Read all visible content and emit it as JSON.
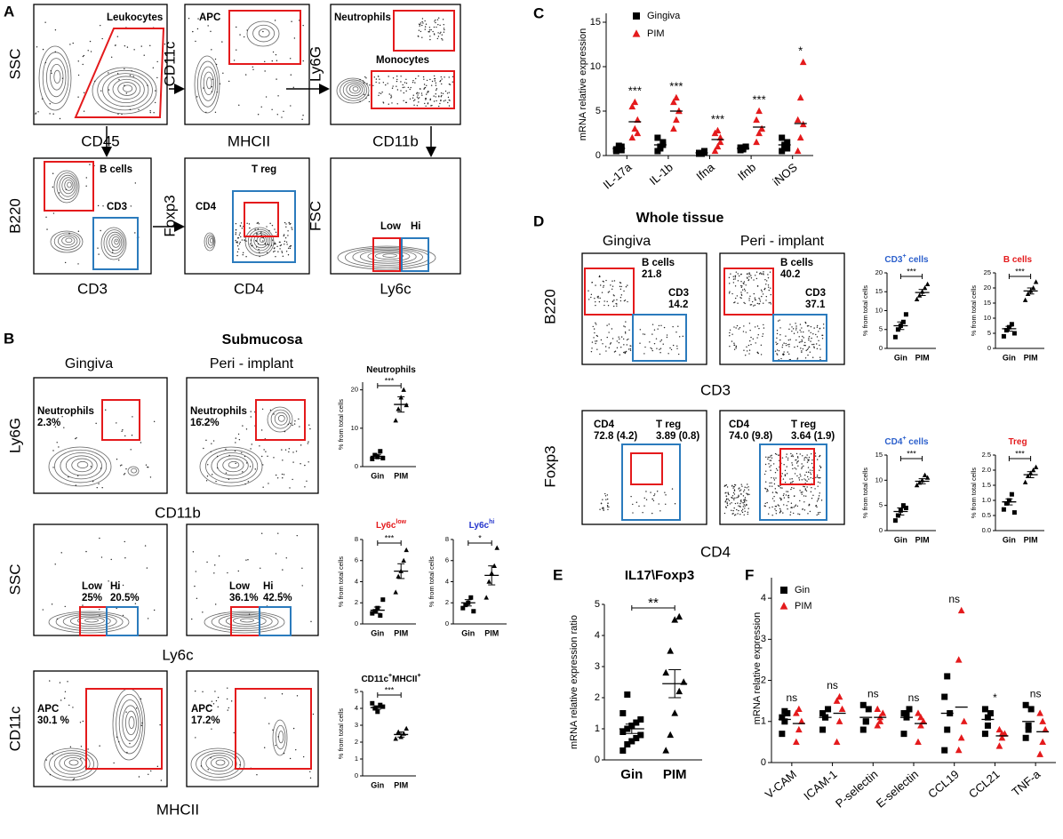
{
  "panel_a": {
    "letter": "A",
    "plots": [
      {
        "x_label": "CD45",
        "y_label": "SSC",
        "gates": [
          {
            "labels": [
              "Leukocytes"
            ],
            "color": "#e41a1c"
          }
        ]
      },
      {
        "x_label": "MHCII",
        "y_label": "CD11c",
        "gates": [
          {
            "labels": [
              "APC"
            ],
            "color": "#e41a1c"
          }
        ]
      },
      {
        "x_label": "CD11b",
        "y_label": "Ly6G",
        "gates": [
          {
            "labels": [
              "Neutrophils"
            ],
            "color": "#e41a1c"
          },
          {
            "labels": [
              "Monocytes"
            ],
            "color": "#e41a1c"
          }
        ]
      },
      {
        "x_label": "CD3",
        "y_label": "B220",
        "gates": [
          {
            "labels": [
              "B cells"
            ],
            "color": "#e41a1c"
          },
          {
            "labels": [
              "CD3"
            ],
            "color": "#2b7bbd"
          }
        ]
      },
      {
        "x_label": "CD4",
        "y_label": "Foxp3",
        "gates": [
          {
            "labels": [
              "T reg"
            ],
            "color": "#e41a1c"
          },
          {
            "labels": [
              "CD4"
            ],
            "color": "#2b7bbd"
          }
        ]
      },
      {
        "x_label": "Ly6c",
        "y_label": "FSC",
        "gates": [
          {
            "labels": [
              "Low"
            ],
            "color": "#e41a1c"
          },
          {
            "labels": [
              "Hi"
            ],
            "color": "#2b7bbd"
          }
        ]
      }
    ]
  },
  "panel_b": {
    "letter": "B",
    "title": "Submucosa",
    "columns": [
      "Gingiva",
      "Peri - implant"
    ],
    "rows": [
      {
        "y_label": "Ly6G",
        "x_label": "CD11b",
        "plots": [
          {
            "gates": [
              {
                "labels": [
                  "Neutrophils",
                  "2.3%"
                ],
                "color": "#e41a1c"
              }
            ]
          },
          {
            "gates": [
              {
                "labels": [
                  "Neutrophils",
                  "16.2%"
                ],
                "color": "#e41a1c"
              }
            ]
          }
        ]
      },
      {
        "y_label": "SSC",
        "x_label": "Ly6c",
        "plots": [
          {
            "gates": [
              {
                "labels": [
                  "Low",
                  "25%"
                ],
                "color": "#e41a1c"
              },
              {
                "labels": [
                  "Hi",
                  "20.5%"
                ],
                "color": "#2b7bbd"
              }
            ]
          },
          {
            "gates": [
              {
                "labels": [
                  "Low",
                  "36.1%"
                ],
                "color": "#e41a1c"
              },
              {
                "labels": [
                  "Hi",
                  "42.5%"
                ],
                "color": "#2b7bbd"
              }
            ]
          }
        ]
      },
      {
        "y_label": "CD11c",
        "x_label": "MHCII",
        "plots": [
          {
            "gates": [
              {
                "labels": [
                  "APC",
                  "30.1 %"
                ],
                "color": "#e41a1c"
              }
            ]
          },
          {
            "gates": [
              {
                "labels": [
                  "APC",
                  "17.2%"
                ],
                "color": "#e41a1c"
              }
            ]
          }
        ]
      }
    ]
  },
  "panel_d": {
    "letter": "D",
    "title": "Whole tissue",
    "columns": [
      "Gingiva",
      "Peri - implant"
    ],
    "rows": [
      {
        "y_label": "B220",
        "x_label": "CD3",
        "plots": [
          {
            "gates": [
              {
                "labels": [
                  "B cells",
                  "21.8"
                ],
                "color": "#e41a1c"
              },
              {
                "labels": [
                  "CD3",
                  "14.2"
                ],
                "color": "#2b7bbd"
              }
            ]
          },
          {
            "gates": [
              {
                "labels": [
                  "B cells",
                  "40.2"
                ],
                "color": "#e41a1c"
              },
              {
                "labels": [
                  "CD3",
                  "37.1"
                ],
                "color": "#2b7bbd"
              }
            ]
          }
        ]
      },
      {
        "y_label": "Foxp3",
        "x_label": "CD4",
        "plots": [
          {
            "gates": [
              {
                "labels": [
                  "CD4",
                  "72.8 (4.2)"
                ],
                "color": "#2b7bbd"
              },
              {
                "labels": [
                  "T reg",
                  "3.89 (0.8)"
                ],
                "color": "#e41a1c"
              }
            ]
          },
          {
            "gates": [
              {
                "labels": [
                  "CD4",
                  "74.0 (9.8)"
                ],
                "color": "#2b7bbd"
              },
              {
                "labels": [
                  "T reg",
                  "3.64 (1.9)"
                ],
                "color": "#e41a1c"
              }
            ]
          }
        ]
      }
    ]
  },
  "chart_data": [
    {
      "type": "dot",
      "title_parts": [
        {
          "t": "Neutrophils"
        }
      ],
      "title_color": "#000000",
      "y_label": "% from total cells",
      "categories": [
        "Gin",
        "PIM"
      ],
      "markers": [
        "square",
        "triangle"
      ],
      "color": "#000000",
      "values": [
        [
          2,
          3,
          2.5,
          4,
          2.2
        ],
        [
          12,
          15,
          18,
          20,
          16
        ]
      ],
      "means": [
        2.7,
        16.2
      ],
      "errors": [
        0.5,
        2
      ],
      "ylim": [
        0,
        22
      ],
      "yticks": [
        0,
        10,
        20
      ],
      "significance": "***"
    },
    {
      "type": "dot",
      "title_parts": [
        {
          "t": "Ly6c"
        },
        {
          "s": "low"
        }
      ],
      "title_color": "#e41a1c",
      "y_label": "% from total cells",
      "categories": [
        "Gin",
        "PIM"
      ],
      "markers": [
        "square",
        "triangle"
      ],
      "color": "#000000",
      "values": [
        [
          1,
          1.2,
          1.5,
          0.8,
          2.3
        ],
        [
          3,
          4.5,
          5,
          6,
          7
        ]
      ],
      "means": [
        1.3,
        5
      ],
      "errors": [
        0.3,
        0.7
      ],
      "ylim": [
        0,
        8
      ],
      "yticks": [
        0,
        2,
        4,
        6,
        8
      ],
      "significance": "***"
    },
    {
      "type": "dot",
      "title_parts": [
        {
          "t": "Ly6c"
        },
        {
          "s": "hi"
        }
      ],
      "title_color": "#2233cc",
      "y_label": "% from total cells",
      "categories": [
        "Gin",
        "PIM"
      ],
      "markers": [
        "square",
        "triangle"
      ],
      "color": "#000000",
      "values": [
        [
          1.5,
          1.8,
          2,
          2.5,
          1.2
        ],
        [
          2.5,
          4,
          4.8,
          5.5,
          7.2
        ]
      ],
      "means": [
        2,
        4.6
      ],
      "errors": [
        0.3,
        0.9
      ],
      "ylim": [
        0,
        8
      ],
      "yticks": [
        0,
        2,
        4,
        6,
        8
      ],
      "significance": "*"
    },
    {
      "type": "dot",
      "title_parts": [
        {
          "t": "CD11c"
        },
        {
          "s": "+"
        },
        {
          "t": "MHCII"
        },
        {
          "s": "+"
        }
      ],
      "title_color": "#000000",
      "y_label": "% from total cells",
      "categories": [
        "Gin",
        "PIM"
      ],
      "markers": [
        "square",
        "triangle"
      ],
      "color": "#000000",
      "values": [
        [
          4.3,
          4,
          3.8,
          4.2,
          4.1
        ],
        [
          2.2,
          2.6,
          2.3,
          2.5,
          2.8
        ]
      ],
      "means": [
        4.05,
        2.45
      ],
      "errors": [
        0.1,
        0.15
      ],
      "ylim": [
        0,
        5
      ],
      "yticks": [
        0,
        1,
        2,
        3,
        4,
        5
      ],
      "significance": "***"
    },
    {
      "type": "dot",
      "title_parts": [
        {
          "t": "CD3"
        },
        {
          "s": "+"
        },
        {
          "t": " cells"
        }
      ],
      "title_color": "#2b5fcc",
      "y_label": "% from total cells",
      "categories": [
        "Gin",
        "PIM"
      ],
      "markers": [
        "square",
        "triangle"
      ],
      "color": "#000000",
      "values": [
        [
          3,
          5,
          6,
          7,
          9
        ],
        [
          13,
          14,
          15,
          16,
          17
        ]
      ],
      "means": [
        6,
        14.8
      ],
      "errors": [
        1,
        0.8
      ],
      "ylim": [
        0,
        20
      ],
      "yticks": [
        0,
        5,
        10,
        15,
        20
      ],
      "significance": "***"
    },
    {
      "type": "dot",
      "title_parts": [
        {
          "t": "B cells"
        }
      ],
      "title_color": "#e41a1c",
      "y_label": "% from total cells",
      "categories": [
        "Gin",
        "PIM"
      ],
      "markers": [
        "square",
        "triangle"
      ],
      "color": "#000000",
      "values": [
        [
          4,
          6,
          7,
          8,
          5
        ],
        [
          16,
          18,
          19,
          20,
          22
        ]
      ],
      "means": [
        6.5,
        19
      ],
      "errors": [
        0.8,
        1
      ],
      "ylim": [
        0,
        25
      ],
      "yticks": [
        0,
        5,
        10,
        15,
        20,
        25
      ],
      "significance": "***"
    },
    {
      "type": "dot",
      "title_parts": [
        {
          "t": "CD4"
        },
        {
          "s": "+"
        },
        {
          "t": " cells"
        }
      ],
      "title_color": "#2b5fcc",
      "y_label": "% from total cells",
      "categories": [
        "Gin",
        "PIM"
      ],
      "markers": [
        "square",
        "triangle"
      ],
      "color": "#000000",
      "values": [
        [
          2,
          3,
          4,
          5,
          4.5
        ],
        [
          9,
          9.5,
          10,
          11,
          10.5
        ]
      ],
      "means": [
        3.8,
        9.8
      ],
      "errors": [
        0.7,
        0.5
      ],
      "ylim": [
        0,
        15
      ],
      "yticks": [
        0,
        5,
        10,
        15
      ],
      "significance": "***"
    },
    {
      "type": "dot",
      "title_parts": [
        {
          "t": "Treg"
        }
      ],
      "title_color": "#e41a1c",
      "y_label": "% from total cells",
      "categories": [
        "Gin",
        "PIM"
      ],
      "markers": [
        "square",
        "triangle"
      ],
      "color": "#000000",
      "values": [
        [
          0.7,
          0.9,
          1,
          1.2,
          0.6
        ],
        [
          1.6,
          1.8,
          1.9,
          2,
          2.1
        ]
      ],
      "means": [
        0.95,
        1.85
      ],
      "errors": [
        0.1,
        0.1
      ],
      "ylim": [
        0,
        2.5
      ],
      "yticks": [
        {
          "value": 0,
          "label": "0.0"
        },
        0.5,
        {
          "value": 1,
          "label": "1.0"
        },
        1.5,
        {
          "value": 2,
          "label": "2.0"
        },
        2.5
      ],
      "significance": "***"
    },
    {
      "type": "grouped_dot",
      "panel_letter": "C",
      "y_label": "mRNA relative expression",
      "categories": [
        "IL-17a",
        "IL-1b",
        "Ifna",
        "Ifnb",
        "iNOS"
      ],
      "series": [
        {
          "name": "Gingiva",
          "color": "#000000",
          "marker": "square",
          "values": [
            [
              0.5,
              0.8,
              1,
              0.7,
              1.1,
              0.6
            ],
            [
              0.5,
              1,
              1.5,
              2,
              0.8,
              1.2
            ],
            [
              0.2,
              0.3,
              0.4,
              0.3,
              0.2,
              0.5
            ],
            [
              0.6,
              0.8,
              1,
              0.9,
              0.7,
              1
            ],
            [
              0.5,
              1,
              1.5,
              2,
              1.2,
              0.8
            ]
          ],
          "means": [
            0.8,
            1.2,
            0.3,
            0.8,
            1.2
          ]
        },
        {
          "name": "PIM",
          "color": "#e41a1c",
          "marker": "triangle",
          "values": [
            [
              2,
              3,
              4,
              5.5,
              6,
              2.5
            ],
            [
              3,
              4,
              5,
              6,
              6.5,
              5
            ],
            [
              0.5,
              1,
              2,
              2.5,
              2.8,
              1.5
            ],
            [
              1.5,
              2.5,
              3,
              4,
              5,
              3
            ],
            [
              0.5,
              2,
              3.5,
              4,
              6.5,
              10.5
            ]
          ],
          "means": [
            3.8,
            5,
            1.8,
            3.2,
            3.6
          ]
        }
      ],
      "significance": [
        "***",
        "***",
        "***",
        "***",
        "*"
      ],
      "ylim": [
        0,
        16
      ],
      "yticks": [
        0,
        5,
        10,
        15
      ]
    },
    {
      "type": "dot",
      "panel_letter": "E",
      "title_parts": [
        {
          "t": "IL17\\Foxp3"
        }
      ],
      "title_color": "#000000",
      "y_label": "mRNA relative expression ratio",
      "categories": [
        "Gin",
        "PIM"
      ],
      "markers": [
        "square",
        "triangle"
      ],
      "color": "#000000",
      "values": [
        [
          0.3,
          0.5,
          0.6,
          0.7,
          0.8,
          0.9,
          1,
          1.1,
          1.2,
          1.3,
          1.5,
          2.1
        ],
        [
          0.3,
          0.8,
          1.5,
          2.2,
          2.5,
          2.8,
          3.5,
          4.5,
          4.6
        ]
      ],
      "means": [
        1,
        2.45
      ],
      "errors": [
        0.15,
        0.45
      ],
      "ylim": [
        0,
        5
      ],
      "yticks": [
        0,
        1,
        2,
        3,
        4,
        5
      ],
      "significance": "**"
    },
    {
      "type": "grouped_dot",
      "panel_letter": "F",
      "y_label": "mRNA relative expression",
      "categories": [
        "V-CAM",
        "ICAM-1",
        "P-selectin",
        "E-selectin",
        "CCL19",
        "CCL21",
        "TNF-a"
      ],
      "series": [
        {
          "name": "Gin",
          "color": "#000000",
          "marker": "square",
          "values": [
            [
              0.7,
              1,
              1.2,
              1.1,
              1.25
            ],
            [
              0.8,
              1.1,
              1.3,
              1.2,
              1.1
            ],
            [
              0.8,
              1,
              1.3,
              1.4,
              1
            ],
            [
              0.7,
              1.1,
              1.3,
              1.2,
              1.2
            ],
            [
              0.3,
              0.8,
              1.2,
              1.6,
              2.1
            ],
            [
              0.7,
              1.1,
              1.2,
              1.3,
              0.9
            ],
            [
              0.6,
              0.9,
              1.3,
              1.4,
              0.8
            ]
          ],
          "means": [
            1.05,
            1.1,
            1.1,
            1.1,
            1.2,
            1.05,
            1
          ]
        },
        {
          "name": "PIM",
          "color": "#e41a1c",
          "marker": "triangle",
          "values": [
            [
              0.5,
              0.8,
              1,
              1.2,
              1.3
            ],
            [
              0.5,
              1,
              1.3,
              1.5,
              1.6
            ],
            [
              0.9,
              1,
              1.2,
              1.3,
              1.1
            ],
            [
              0.5,
              0.9,
              1,
              1.2,
              1.1
            ],
            [
              0.3,
              0.6,
              1,
              2.5,
              3.7
            ],
            [
              0.4,
              0.6,
              0.7,
              0.8,
              0.7
            ],
            [
              0.2,
              0.5,
              0.8,
              1.2,
              1
            ]
          ],
          "means": [
            0.95,
            1.2,
            1.1,
            0.95,
            1.35,
            0.65,
            0.75
          ]
        }
      ],
      "significance": [
        "ns",
        "ns",
        "ns",
        "ns",
        "ns",
        "*",
        "ns"
      ],
      "ylim": [
        0,
        4.5
      ],
      "yticks": [
        0,
        1,
        2,
        3,
        4
      ]
    }
  ]
}
